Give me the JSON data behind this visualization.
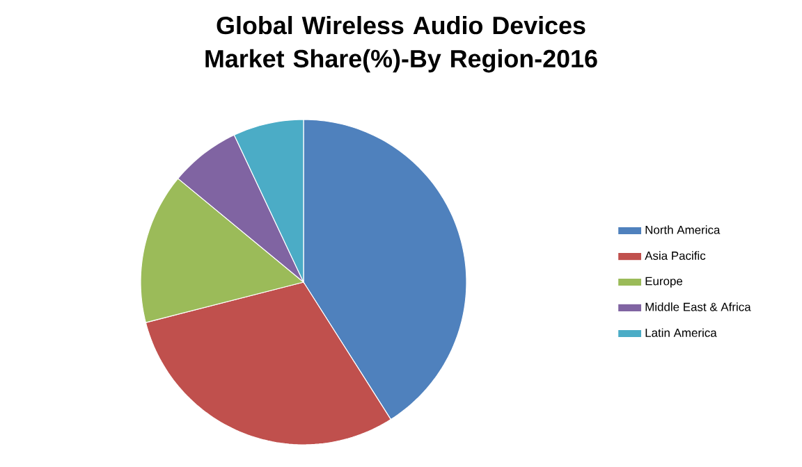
{
  "chart_data": {
    "type": "pie",
    "title": "Global Wireless Audio Devices Market Share(%)-By Region-2016",
    "categories": [
      "North America",
      "Asia Pacific",
      "Europe",
      "Middle East & Africa",
      "Latin America"
    ],
    "values": [
      41,
      30,
      15,
      7,
      7
    ],
    "colors": [
      "#4f81bd",
      "#c0504d",
      "#9bbb59",
      "#8064a2",
      "#4bacc6"
    ],
    "legend": "right"
  }
}
